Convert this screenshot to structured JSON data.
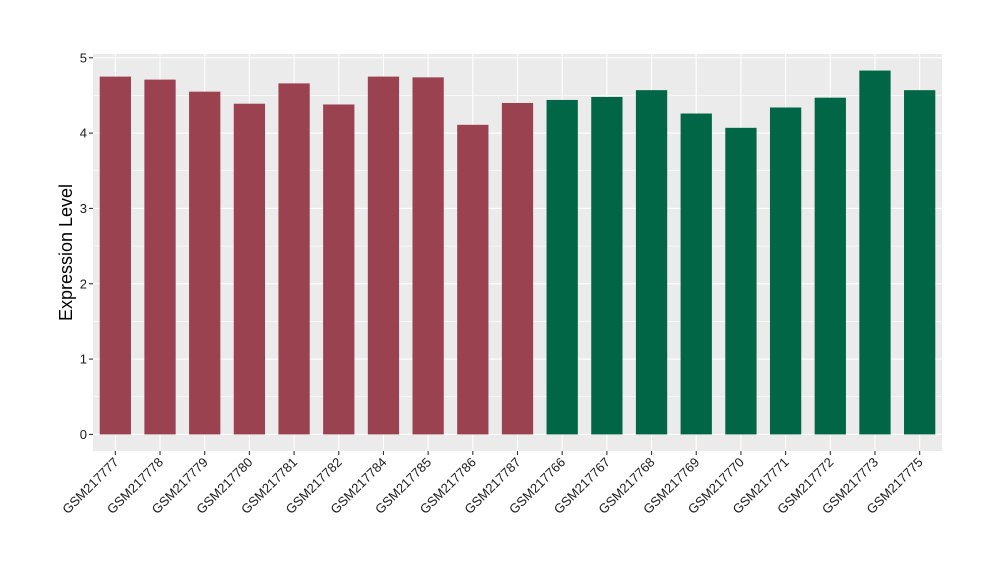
{
  "chart_data": {
    "type": "bar",
    "title": "",
    "xlabel": "",
    "ylabel": "Expression Level",
    "ylim": [
      -0.22,
      5.05
    ],
    "yticks": [
      0,
      1,
      2,
      3,
      4,
      5
    ],
    "grid": true,
    "categories": [
      "GSM217777",
      "GSM217778",
      "GSM217779",
      "GSM217780",
      "GSM217781",
      "GSM217782",
      "GSM217784",
      "GSM217785",
      "GSM217786",
      "GSM217787",
      "GSM217766",
      "GSM217767",
      "GSM217768",
      "GSM217769",
      "GSM217770",
      "GSM217771",
      "GSM217772",
      "GSM217773",
      "GSM217775"
    ],
    "values": [
      4.75,
      4.71,
      4.55,
      4.39,
      4.66,
      4.38,
      4.75,
      4.74,
      4.11,
      4.4,
      4.44,
      4.48,
      4.57,
      4.26,
      4.07,
      4.34,
      4.47,
      4.83,
      4.57
    ],
    "group_colors": [
      "#9b4251",
      "#9b4251",
      "#9b4251",
      "#9b4251",
      "#9b4251",
      "#9b4251",
      "#9b4251",
      "#9b4251",
      "#9b4251",
      "#9b4251",
      "#006645",
      "#006645",
      "#006645",
      "#006645",
      "#006645",
      "#006645",
      "#006645",
      "#006645",
      "#006645"
    ],
    "panel_background": "#ebebeb",
    "grid_color": "#ffffff"
  }
}
